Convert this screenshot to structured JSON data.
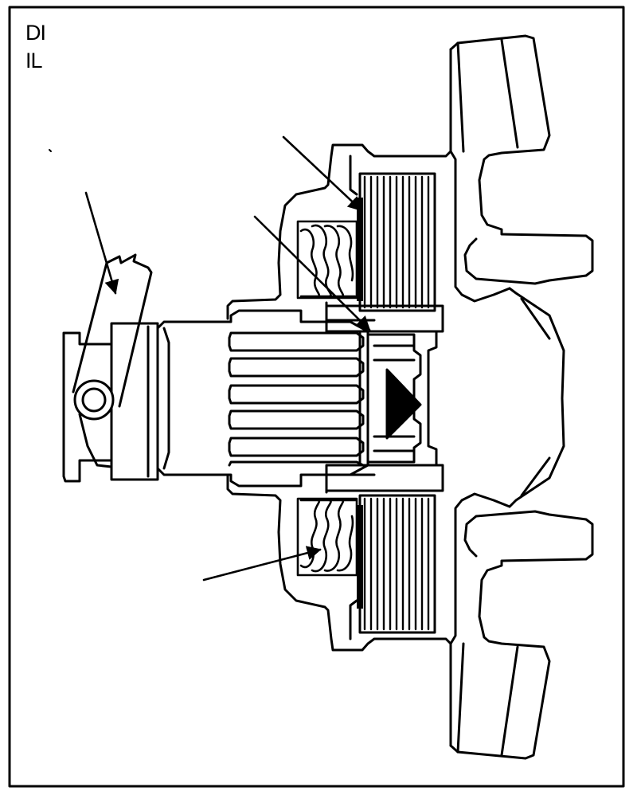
{
  "figure": {
    "labels": [
      "DI",
      "IL"
    ],
    "colors": {
      "ink": "#000000",
      "paper": "#ffffff"
    },
    "pointers": [
      {
        "id": "arrow-clutch-plates",
        "target": "clutch-pack-top"
      },
      {
        "id": "arrow-hub",
        "target": "clutch-hub"
      },
      {
        "id": "arrow-fork",
        "target": "release-fork"
      },
      {
        "id": "arrow-spring",
        "target": "spring-bottom"
      }
    ]
  }
}
